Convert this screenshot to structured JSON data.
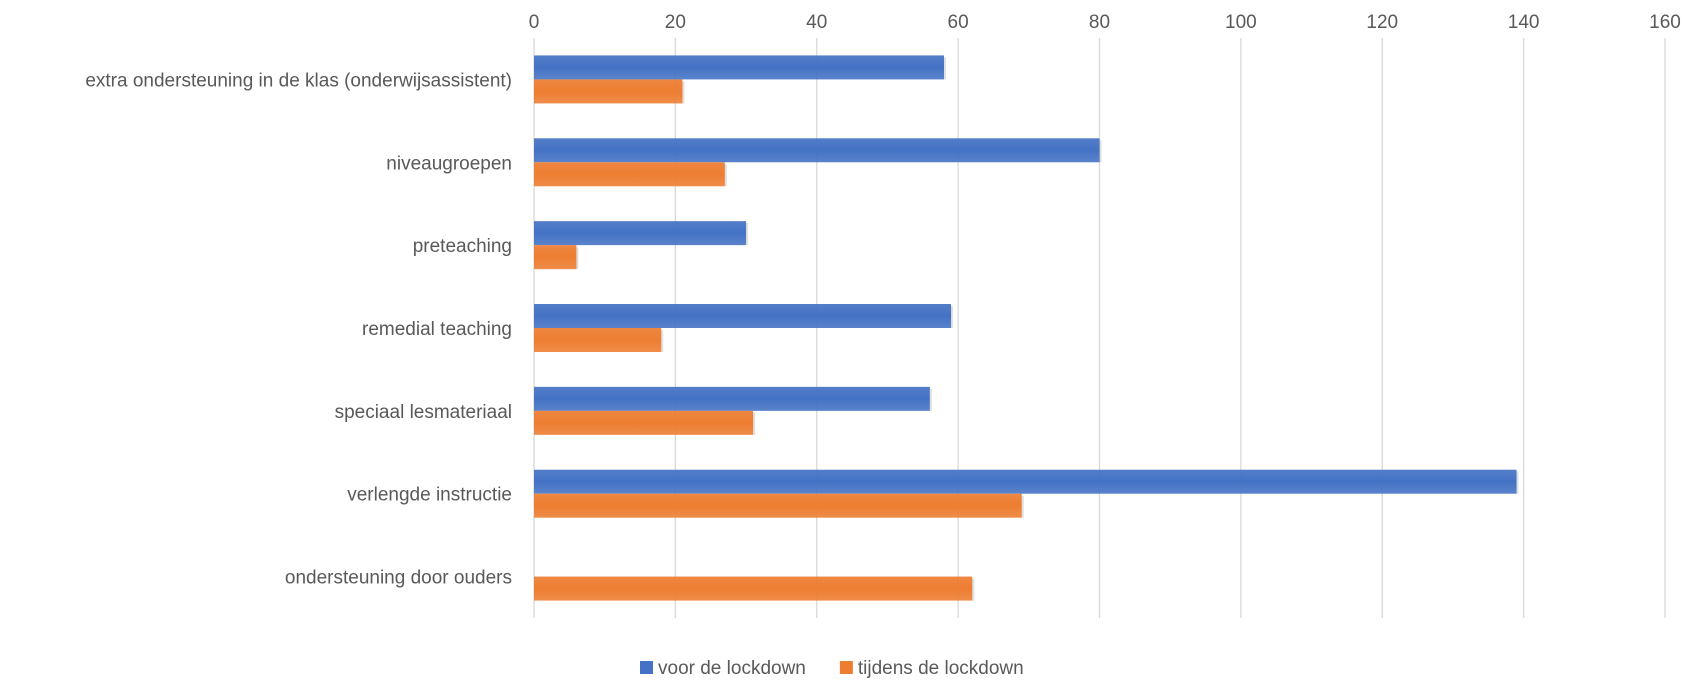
{
  "chart_data": {
    "type": "bar",
    "orientation": "horizontal",
    "categories": [
      "extra ondersteuning in de klas (onderwijsassistent)",
      "niveaugroepen",
      "preteaching",
      "remedial teaching",
      "speciaal lesmateriaal",
      "verlengde instructie",
      "ondersteuning door ouders"
    ],
    "series": [
      {
        "name": "voor de lockdown",
        "color": "#4472c4",
        "values": [
          58,
          80,
          30,
          59,
          56,
          139,
          null
        ]
      },
      {
        "name": "tijdens de lockdown",
        "color": "#ed7d31",
        "values": [
          21,
          27,
          6,
          18,
          31,
          69,
          62
        ]
      }
    ],
    "xlim": [
      0,
      160
    ],
    "xticks": [
      "0",
      "20",
      "40",
      "60",
      "80",
      "100",
      "120",
      "140",
      "160"
    ],
    "x_axis_position": "top",
    "grid": true,
    "legend": "bottom",
    "title": "",
    "xlabel": "",
    "ylabel": ""
  }
}
